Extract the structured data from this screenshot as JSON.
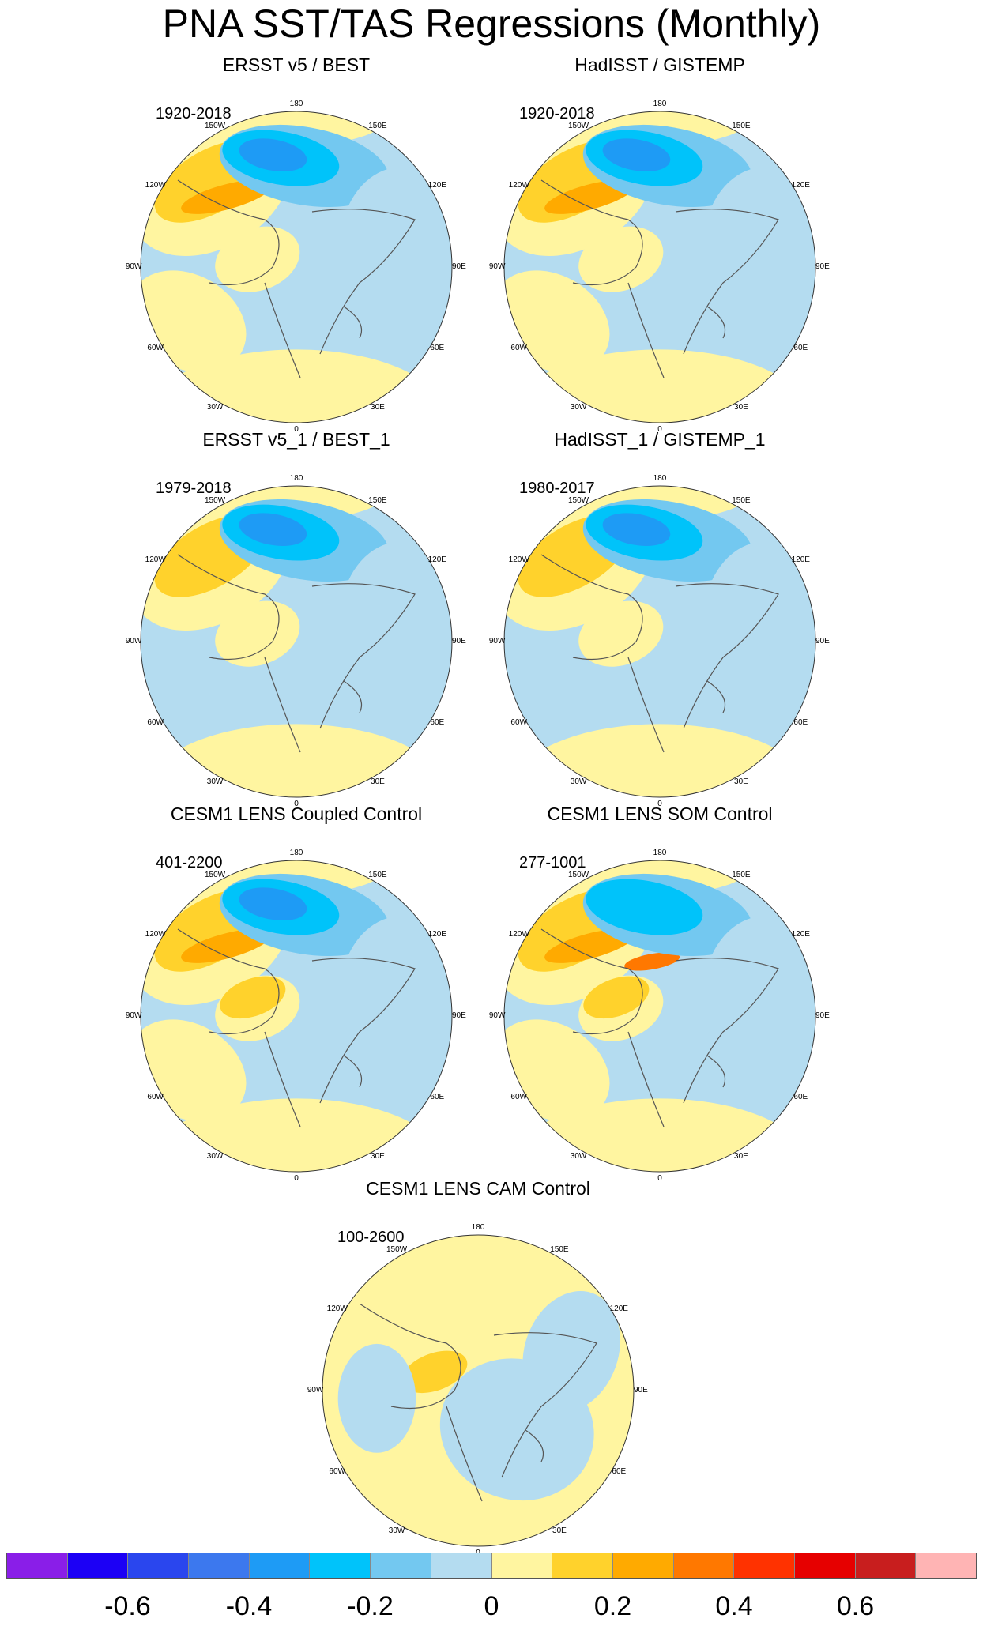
{
  "page": {
    "title": "PNA SST/TAS Regressions (Monthly)"
  },
  "lon_labels": [
    "180",
    "150E",
    "120E",
    "90E",
    "60E",
    "30E",
    "0",
    "30W",
    "60W",
    "90W",
    "120W",
    "150W"
  ],
  "panels": [
    {
      "title": "ERSST v5 / BEST",
      "period": "1920-2018",
      "pattern": {
        "pacific_cold": 4,
        "west_warm": 2,
        "arctic_warm": 1,
        "ocean_base": "cool",
        "atlantic_warm": true,
        "siberia_cool": true
      }
    },
    {
      "title": "HadISST / GISTEMP",
      "period": "1920-2018",
      "pattern": {
        "pacific_cold": 4,
        "west_warm": 2,
        "arctic_warm": 1,
        "ocean_base": "cool",
        "atlantic_warm": true,
        "siberia_cool": true
      }
    },
    {
      "title": "ERSST v5_1 / BEST_1",
      "period": "1979-2018",
      "pattern": {
        "pacific_cold": 4,
        "west_warm": 1,
        "arctic_warm": 1,
        "ocean_base": "cool",
        "atlantic_warm": false,
        "siberia_cool": true
      }
    },
    {
      "title": "HadISST_1 / GISTEMP_1",
      "period": "1980-2017",
      "pattern": {
        "pacific_cold": 4,
        "west_warm": 1,
        "arctic_warm": 1,
        "ocean_base": "cool",
        "atlantic_warm": false,
        "siberia_cool": true
      }
    },
    {
      "title": "CESM1 LENS Coupled Control",
      "period": "401-2200",
      "pattern": {
        "pacific_cold": 3,
        "west_warm": 2,
        "arctic_warm": 2,
        "ocean_base": "cool",
        "atlantic_warm": true,
        "siberia_cool": true
      }
    },
    {
      "title": "CESM1 LENS SOM Control",
      "period": "277-1001",
      "pattern": {
        "pacific_cold": 2,
        "west_warm": 3,
        "arctic_warm": 2,
        "ocean_base": "cool",
        "atlantic_warm": true,
        "siberia_cool": true
      }
    },
    {
      "title": "CESM1 LENS CAM Control",
      "period": "100-2600",
      "pattern": {
        "pacific_cold": 0,
        "west_warm": 0,
        "arctic_warm": 2,
        "ocean_base": "warm",
        "atlantic_warm": false,
        "siberia_cool": true
      }
    }
  ],
  "colorbar": {
    "colors": [
      "#8a1ee8",
      "#1c00f5",
      "#2a46ee",
      "#3c78ee",
      "#1e9bf5",
      "#00c3fa",
      "#73c8f0",
      "#b4dcf0",
      "#fff5a0",
      "#ffd22c",
      "#ffaa00",
      "#ff7800",
      "#ff3200",
      "#e60000",
      "#c81e1e",
      "#ffb4b4"
    ],
    "labels": [
      "-0.6",
      "-0.4",
      "-0.2",
      "0",
      "0.2",
      "0.4",
      "0.6"
    ],
    "label_values": [
      -0.6,
      -0.4,
      -0.2,
      0,
      0.2,
      0.4,
      0.6
    ],
    "min": -0.8,
    "max": 0.8
  }
}
